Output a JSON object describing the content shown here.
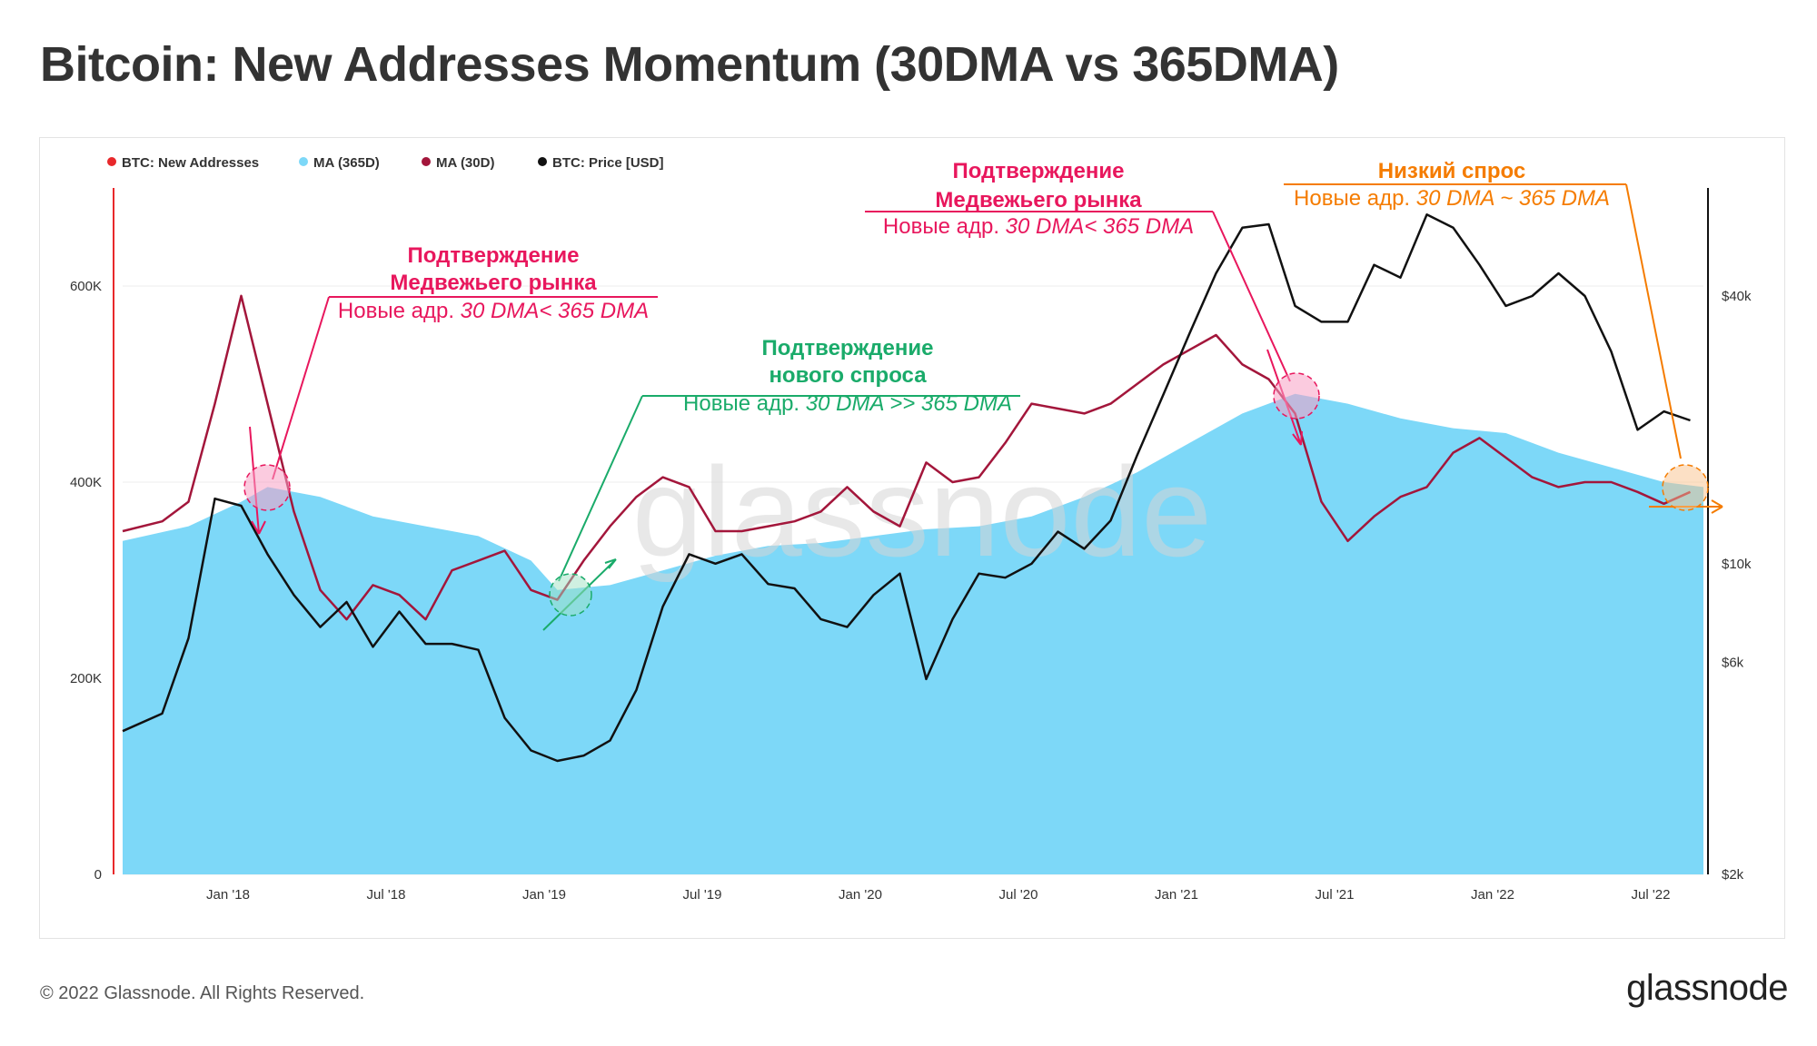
{
  "title": "Bitcoin: New Addresses Momentum (30DMA vs 365DMA)",
  "footer": "© 2022 Glassnode. All Rights Reserved.",
  "logo": "glassnode",
  "watermark": "glassnode",
  "legend": [
    {
      "label": "BTC: New Addresses",
      "color": "#e8282b",
      "muted": true
    },
    {
      "label": "MA (365D)",
      "color": "#7dd8f8",
      "muted": false
    },
    {
      "label": "MA (30D)",
      "color": "#a3163b",
      "muted": false
    },
    {
      "label": "BTC: Price [USD]",
      "color": "#111111",
      "muted": false
    }
  ],
  "annotations": {
    "a1": {
      "title1": "Подтверждение",
      "title2": "Медвежьего рынка",
      "sub_prefix": "Новые адр. ",
      "sub_italic": "30 DMA< 365 DMA",
      "color": "#e8175d"
    },
    "a2": {
      "title1": "Подтверждение",
      "title2": "нового спроса",
      "sub_prefix": "Новые адр. ",
      "sub_italic": "30 DMA >> 365 DMA",
      "color": "#1aab6a"
    },
    "a3": {
      "title1": "Подтверждение",
      "title2": "Медвежьего рынка",
      "sub_prefix": "Новые адр. ",
      "sub_italic": "30 DMA< 365 DMA",
      "color": "#e8175d"
    },
    "a4": {
      "title1": "Низкий спрос",
      "sub_prefix": "Новые адр. ",
      "sub_italic": "30 DMA ~ 365 DMA",
      "color": "#f57c00"
    }
  },
  "chart_data": {
    "type": "area",
    "x_tick_labels": [
      "Jan '18",
      "Jul '18",
      "Jan '19",
      "Jul '19",
      "Jan '20",
      "Jul '20",
      "Jan '21",
      "Jul '21",
      "Jan '22",
      "Jul '22"
    ],
    "x_range": [
      "2017-09-01",
      "2022-08-31"
    ],
    "y_left": {
      "ticks": [
        0,
        200000,
        400000,
        600000
      ],
      "tick_labels": [
        "0",
        "200K",
        "400K",
        "600K"
      ],
      "range": [
        0,
        700000
      ]
    },
    "y_right": {
      "scale": "log",
      "ticks": [
        2000,
        6000,
        10000,
        40000
      ],
      "tick_labels": [
        "$2k",
        "$6k",
        "$10k",
        "$40k"
      ],
      "range": [
        2000,
        70000
      ]
    },
    "series": [
      {
        "name": "MA (365D)",
        "axis": "left",
        "style": "area",
        "x": [
          "2017-09",
          "2017-11",
          "2018-01",
          "2018-02",
          "2018-04",
          "2018-06",
          "2018-08",
          "2018-10",
          "2018-12",
          "2019-01",
          "2019-03",
          "2019-05",
          "2019-07",
          "2019-09",
          "2019-11",
          "2020-01",
          "2020-03",
          "2020-05",
          "2020-07",
          "2020-09",
          "2020-11",
          "2021-01",
          "2021-03",
          "2021-05",
          "2021-07",
          "2021-09",
          "2021-11",
          "2022-01",
          "2022-03",
          "2022-05",
          "2022-07",
          "2022-08"
        ],
        "values": [
          340000,
          355000,
          380000,
          395000,
          385000,
          365000,
          355000,
          345000,
          320000,
          290000,
          295000,
          310000,
          325000,
          335000,
          338000,
          345000,
          352000,
          355000,
          365000,
          385000,
          410000,
          440000,
          470000,
          490000,
          480000,
          465000,
          455000,
          450000,
          430000,
          415000,
          400000,
          395000
        ]
      },
      {
        "name": "MA (30D)",
        "axis": "left",
        "style": "line",
        "x": [
          "2017-09",
          "2017-10",
          "2017-11",
          "2017-12",
          "2018-01",
          "2018-02",
          "2018-03",
          "2018-04",
          "2018-05",
          "2018-06",
          "2018-07",
          "2018-08",
          "2018-09",
          "2018-10",
          "2018-11",
          "2018-12",
          "2019-01",
          "2019-02",
          "2019-03",
          "2019-04",
          "2019-05",
          "2019-06",
          "2019-07",
          "2019-08",
          "2019-09",
          "2019-10",
          "2019-11",
          "2019-12",
          "2020-01",
          "2020-02",
          "2020-03",
          "2020-04",
          "2020-05",
          "2020-06",
          "2020-07",
          "2020-08",
          "2020-09",
          "2020-10",
          "2020-11",
          "2020-12",
          "2021-01",
          "2021-02",
          "2021-03",
          "2021-04",
          "2021-05",
          "2021-06",
          "2021-07",
          "2021-08",
          "2021-09",
          "2021-10",
          "2021-11",
          "2021-12",
          "2022-01",
          "2022-02",
          "2022-03",
          "2022-04",
          "2022-05",
          "2022-06",
          "2022-07",
          "2022-08"
        ],
        "values": [
          350000,
          360000,
          380000,
          480000,
          590000,
          480000,
          370000,
          290000,
          260000,
          295000,
          285000,
          260000,
          310000,
          320000,
          330000,
          290000,
          280000,
          320000,
          355000,
          385000,
          405000,
          395000,
          350000,
          350000,
          355000,
          360000,
          370000,
          395000,
          370000,
          355000,
          420000,
          400000,
          405000,
          440000,
          480000,
          475000,
          470000,
          480000,
          500000,
          520000,
          535000,
          550000,
          520000,
          505000,
          470000,
          380000,
          340000,
          365000,
          385000,
          395000,
          430000,
          445000,
          425000,
          405000,
          395000,
          400000,
          400000,
          390000,
          378000,
          390000
        ]
      },
      {
        "name": "BTC: Price [USD]",
        "axis": "right",
        "style": "line",
        "x": [
          "2017-09",
          "2017-10",
          "2017-11",
          "2017-12",
          "2018-01",
          "2018-02",
          "2018-03",
          "2018-04",
          "2018-05",
          "2018-06",
          "2018-07",
          "2018-08",
          "2018-09",
          "2018-10",
          "2018-11",
          "2018-12",
          "2019-01",
          "2019-02",
          "2019-03",
          "2019-04",
          "2019-05",
          "2019-06",
          "2019-07",
          "2019-08",
          "2019-09",
          "2019-10",
          "2019-11",
          "2019-12",
          "2020-01",
          "2020-02",
          "2020-03",
          "2020-04",
          "2020-05",
          "2020-06",
          "2020-07",
          "2020-08",
          "2020-09",
          "2020-10",
          "2020-11",
          "2020-12",
          "2021-01",
          "2021-02",
          "2021-03",
          "2021-04",
          "2021-05",
          "2021-06",
          "2021-07",
          "2021-08",
          "2021-09",
          "2021-10",
          "2021-11",
          "2021-12",
          "2022-01",
          "2022-02",
          "2022-03",
          "2022-04",
          "2022-05",
          "2022-06",
          "2022-07",
          "2022-08"
        ],
        "values": [
          4200,
          4600,
          6800,
          14000,
          13500,
          10500,
          8500,
          7200,
          8200,
          6500,
          7800,
          6600,
          6600,
          6400,
          4500,
          3800,
          3600,
          3700,
          4000,
          5200,
          8000,
          10500,
          10000,
          10500,
          9000,
          8800,
          7500,
          7200,
          8500,
          9500,
          5500,
          7500,
          9500,
          9300,
          10000,
          11800,
          10800,
          12500,
          17500,
          24000,
          33000,
          45000,
          57000,
          58000,
          38000,
          35000,
          35000,
          47000,
          44000,
          61000,
          57000,
          47000,
          38000,
          40000,
          45000,
          40000,
          30000,
          20000,
          22000,
          21000
        ]
      }
    ]
  }
}
